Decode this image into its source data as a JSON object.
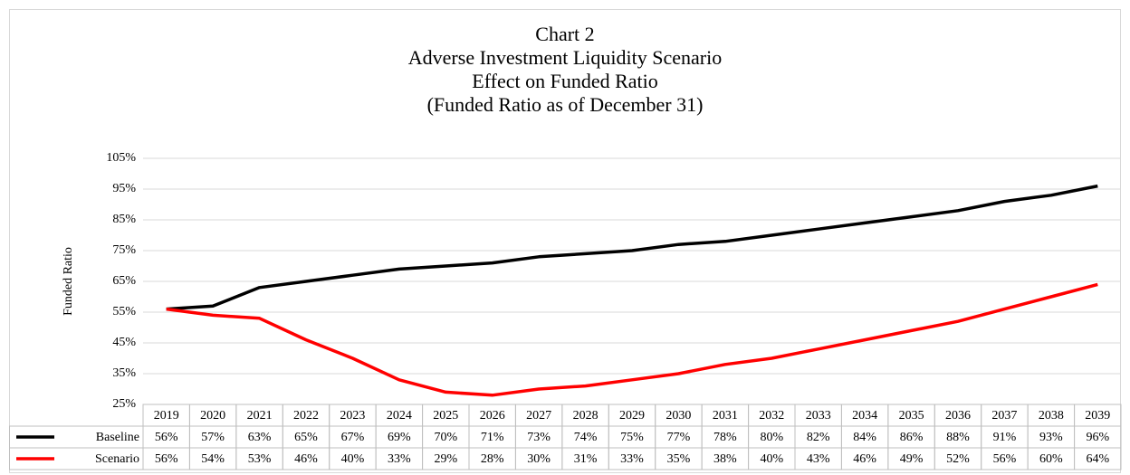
{
  "chart_data": {
    "type": "line",
    "title": [
      "Chart 2",
      "Adverse Investment Liquidity Scenario",
      "Effect on Funded Ratio",
      "(Funded Ratio as of December 31)"
    ],
    "y_label": "Funded Ratio",
    "categories": [
      "2019",
      "2020",
      "2021",
      "2022",
      "2023",
      "2024",
      "2025",
      "2026",
      "2027",
      "2028",
      "2029",
      "2030",
      "2031",
      "2032",
      "2033",
      "2034",
      "2035",
      "2036",
      "2037",
      "2038",
      "2039"
    ],
    "series": [
      {
        "name": "Baseline",
        "color": "#000000",
        "values": [
          56,
          57,
          63,
          65,
          67,
          69,
          70,
          71,
          73,
          74,
          75,
          77,
          78,
          80,
          82,
          84,
          86,
          88,
          91,
          93,
          96
        ],
        "value_labels": [
          "56%",
          "57%",
          "63%",
          "65%",
          "67%",
          "69%",
          "70%",
          "71%",
          "73%",
          "74%",
          "75%",
          "77%",
          "78%",
          "80%",
          "82%",
          "84%",
          "86%",
          "88%",
          "91%",
          "93%",
          "96%"
        ]
      },
      {
        "name": "Scenario",
        "color": "#ff0000",
        "values": [
          56,
          54,
          53,
          46,
          40,
          33,
          29,
          28,
          30,
          31,
          33,
          35,
          38,
          40,
          43,
          46,
          49,
          52,
          56,
          60,
          64
        ],
        "value_labels": [
          "56%",
          "54%",
          "53%",
          "46%",
          "40%",
          "33%",
          "29%",
          "28%",
          "30%",
          "31%",
          "33%",
          "35%",
          "38%",
          "40%",
          "43%",
          "46%",
          "49%",
          "52%",
          "56%",
          "60%",
          "64%"
        ]
      }
    ],
    "ylim": [
      25,
      105
    ],
    "yticks": [
      {
        "value": 25,
        "label": "25%"
      },
      {
        "value": 35,
        "label": "35%"
      },
      {
        "value": 45,
        "label": "45%"
      },
      {
        "value": 55,
        "label": "55%"
      },
      {
        "value": 65,
        "label": "65%"
      },
      {
        "value": 75,
        "label": "75%"
      },
      {
        "value": 85,
        "label": "85%"
      },
      {
        "value": 95,
        "label": "95%"
      },
      {
        "value": 105,
        "label": "105%"
      }
    ],
    "grid": true
  }
}
